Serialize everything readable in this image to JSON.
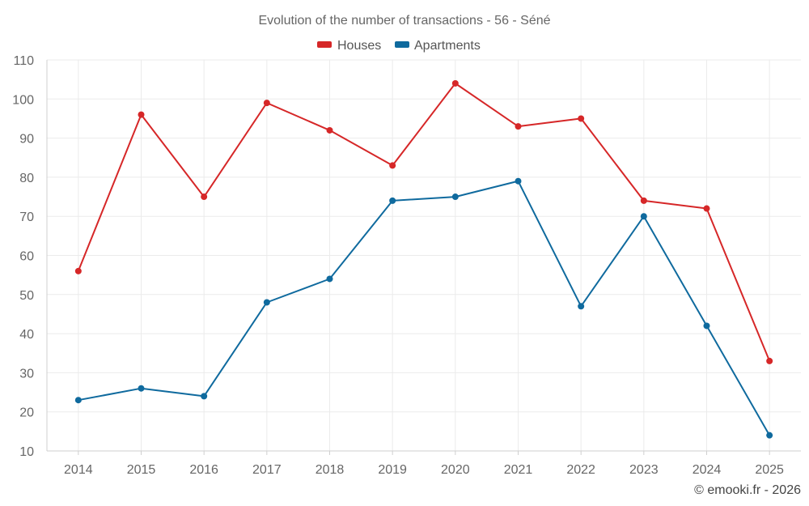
{
  "chart_data": {
    "type": "line",
    "title": "Evolution of the number of transactions - 56 - Séné",
    "categories": [
      "2014",
      "2015",
      "2016",
      "2017",
      "2018",
      "2019",
      "2020",
      "2021",
      "2022",
      "2023",
      "2024",
      "2025"
    ],
    "series": [
      {
        "name": "Houses",
        "color": "#d62728",
        "values": [
          56,
          96,
          75,
          99,
          92,
          83,
          104,
          93,
          95,
          74,
          72,
          33
        ]
      },
      {
        "name": "Apartments",
        "color": "#0f6a9e",
        "values": [
          23,
          26,
          24,
          48,
          54,
          74,
          75,
          79,
          47,
          70,
          42,
          14
        ]
      }
    ],
    "ylim": [
      10,
      110
    ],
    "yticks": [
      10,
      20,
      30,
      40,
      50,
      60,
      70,
      80,
      90,
      100,
      110
    ],
    "xlabel": "",
    "ylabel": "",
    "grid": true,
    "legend_position": "top-center"
  },
  "credit": "© emooki.fr - 2026"
}
